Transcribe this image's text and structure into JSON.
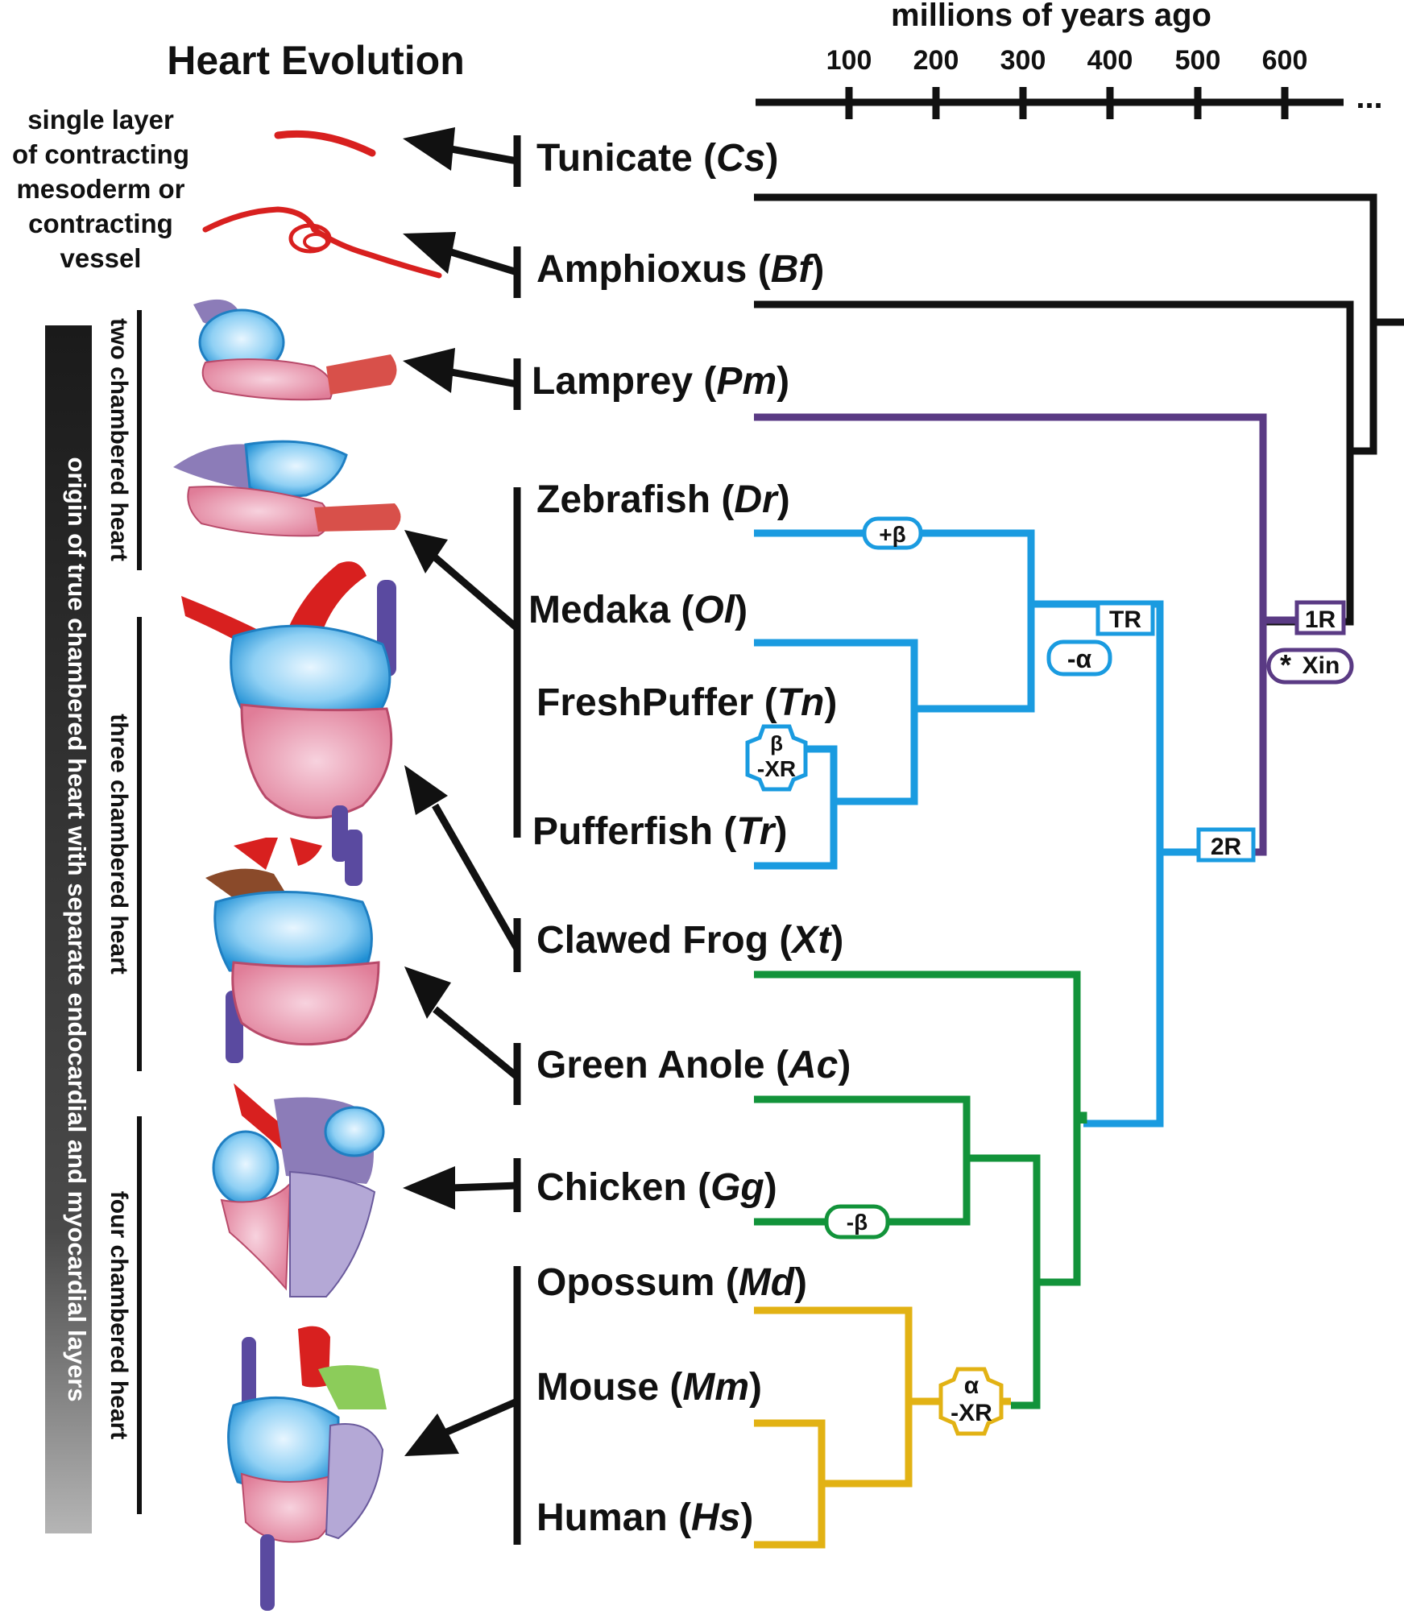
{
  "title": "Heart Evolution",
  "axis": {
    "label": "millions of years ago",
    "ticks": [
      "100",
      "200",
      "300",
      "400",
      "500",
      "600"
    ],
    "continuation": "..."
  },
  "early_heart_label": [
    "single layer",
    "of contracting",
    "mesoderm or",
    "contracting",
    "vessel"
  ],
  "side_labels": {
    "origin": "origin of true chambered heart with separate endocardial and myocardial layers",
    "two_chambered": "two chambered heart",
    "three_chambered": "three chambered heart",
    "four_chambered": "four chambered heart"
  },
  "species": [
    {
      "name": "Tunicate",
      "abbr": "Cs"
    },
    {
      "name": "Amphioxus",
      "abbr": "Bf"
    },
    {
      "name": "Lamprey",
      "abbr": "Pm"
    },
    {
      "name": "Zebrafish",
      "abbr": "Dr"
    },
    {
      "name": "Medaka",
      "abbr": "Ol"
    },
    {
      "name": "FreshPuffer",
      "abbr": "Tn"
    },
    {
      "name": "Pufferfish",
      "abbr": "Tr"
    },
    {
      "name": "Clawed Frog",
      "abbr": "Xt"
    },
    {
      "name": "Green Anole",
      "abbr": "Ac"
    },
    {
      "name": "Chicken",
      "abbr": "Gg"
    },
    {
      "name": "Opossum",
      "abbr": "Md"
    },
    {
      "name": "Mouse",
      "abbr": "Mm"
    },
    {
      "name": "Human",
      "abbr": "Hs"
    }
  ],
  "events": {
    "one_r": "1R",
    "xin": "Xin",
    "two_r": "2R",
    "tr": "TR",
    "minus_alpha": "-α",
    "plus_beta": "+β",
    "minus_beta": "-β",
    "beta_xr_top": "β",
    "beta_xr_bottom": "-XR",
    "alpha_xr_top": "α",
    "alpha_xr_bottom": "-XR"
  },
  "colors": {
    "black": "#111111",
    "purple": "#5a3a84",
    "blue": "#1a9be0",
    "green": "#12933a",
    "gold": "#e2b214",
    "heart_red": "#d8201f",
    "heart_blue": "#2a9ad8",
    "heart_pink": "#e58aa0",
    "heart_purple": "#8c7cb8"
  }
}
